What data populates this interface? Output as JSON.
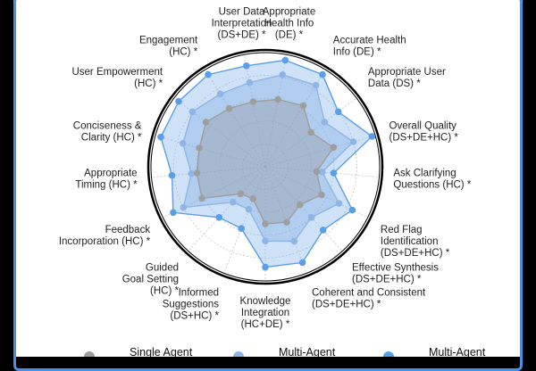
{
  "chart_data": {
    "type": "radar",
    "axes": [
      [
        "Appropriate",
        "Health Info",
        "(DE) *"
      ],
      [
        "Accurate Health",
        "Info (DE) *"
      ],
      [
        "Appropriate User",
        "Data (DS) *"
      ],
      [
        "Overall Quality",
        "(DS+DE+HC) *"
      ],
      [
        "Ask Clarifying",
        "Questions (HC) *"
      ],
      [
        "Red Flag",
        "Identification",
        "(DS+DE+HC) *"
      ],
      [
        "Effective Synthesis",
        "(DS+DE+HC) *"
      ],
      [
        "Coherent and Consistent",
        "(DS+DE+HC) *"
      ],
      [
        "Knowledge",
        "Integration",
        "(HC+DE) *"
      ],
      [
        "Informed",
        "Suggestions",
        "(DS+HC) *"
      ],
      [
        "Guided",
        "Goal Setting",
        "(HC) *"
      ],
      [
        "Feedback",
        "Incorporation (HC) *"
      ],
      [
        "Appropriate",
        "Timing (HC) *"
      ],
      [
        "Conciseness &",
        "Clarity (HC) *"
      ],
      [
        "User Empowerment",
        "(HC) *"
      ],
      [
        "Engagement",
        "(HC) *"
      ],
      [
        "User Data",
        "Interpretation",
        "(DS+DE) *"
      ]
    ],
    "rlim": [
      0,
      1
    ],
    "grid": true,
    "series": [
      {
        "name": "Single Agent",
        "color": "#9e9e9e",
        "values": [
          0.6,
          0.63,
          0.5,
          0.62,
          0.45,
          0.55,
          0.45,
          0.52,
          0.5,
          0.3,
          0.32,
          0.62,
          0.6,
          0.6,
          0.65,
          0.6,
          0.58
        ]
      },
      {
        "name": "Multi-Agent",
        "color": "#8fb5e6",
        "values": [
          0.82,
          0.84,
          0.65,
          0.8,
          0.5,
          0.72,
          0.6,
          0.7,
          0.65,
          0.4,
          0.42,
          0.8,
          0.65,
          0.75,
          0.8,
          0.75,
          0.75
        ]
      },
      {
        "name": "Multi-Agent",
        "color": "#5b9ee8",
        "values": [
          0.95,
          0.95,
          0.8,
          0.97,
          0.6,
          0.85,
          0.75,
          0.9,
          0.88,
          0.58,
          0.6,
          0.9,
          0.82,
          0.95,
          0.95,
          0.95,
          0.9
        ]
      }
    ]
  }
}
